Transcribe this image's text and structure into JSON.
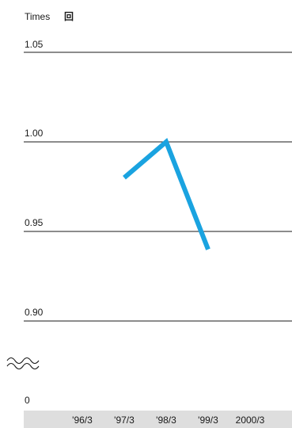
{
  "chart_data": {
    "type": "line",
    "unit_label": "Times",
    "unit_label_jp": "回",
    "categories": [
      "'96/3",
      "'97/3",
      "'98/3",
      "'99/3",
      "2000/3"
    ],
    "series": [
      {
        "values": [
          null,
          0.98,
          1.0,
          0.94,
          null
        ],
        "color": "#1aa3e0"
      }
    ],
    "y_ticks": [
      "1.05",
      "1.00",
      "0.95",
      "0.90",
      "0"
    ],
    "ylim": [
      0.9,
      1.05
    ],
    "axis_break": true,
    "baseline_value": 0,
    "grid": true
  }
}
